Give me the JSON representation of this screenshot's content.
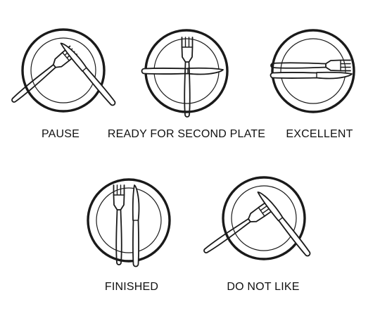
{
  "colors": {
    "stroke": "#1a1a1a",
    "fill": "#ffffff",
    "text": "#111111"
  },
  "signals": [
    {
      "id": "pause",
      "label": "PAUSE"
    },
    {
      "id": "ready-for-second-plate",
      "label": "READY FOR SECOND PLATE"
    },
    {
      "id": "excellent",
      "label": "EXCELLENT"
    },
    {
      "id": "finished",
      "label": "FINISHED"
    },
    {
      "id": "do-not-like",
      "label": "DO NOT LIKE"
    }
  ]
}
